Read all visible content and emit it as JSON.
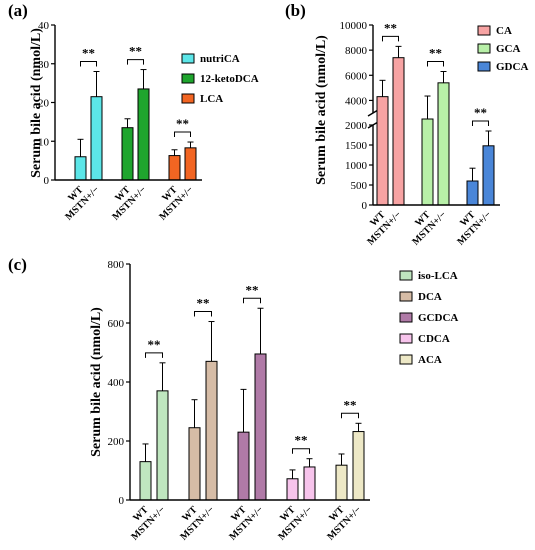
{
  "chart_data": [
    {
      "panel": "(a)",
      "type": "bar",
      "ylabel": "Serum bile acid (nmol/L)",
      "ylim": [
        0,
        40
      ],
      "yticks": [
        0,
        10,
        20,
        30,
        40
      ],
      "categories": [
        "WT",
        "MSTN+/−"
      ],
      "series": [
        {
          "name": "nutriCA",
          "color": "#5ce6e8",
          "values": [
            6,
            21.5
          ],
          "errors": [
            4.5,
            6.5
          ]
        },
        {
          "name": "12-ketoDCA",
          "color": "#1fa52e",
          "values": [
            13.5,
            23.5
          ],
          "errors": [
            2.3,
            5
          ]
        },
        {
          "name": "LCA",
          "color": "#f26522",
          "values": [
            6.3,
            8.3
          ],
          "errors": [
            1.5,
            1.5
          ]
        }
      ],
      "significance": [
        "**",
        "**",
        "**"
      ],
      "legend": "right"
    },
    {
      "panel": "(b)",
      "type": "bar",
      "ylabel": "Serum bile acid (nmol/L)",
      "ylim": [
        0,
        10000
      ],
      "broken_axis": {
        "lower": [
          0,
          2000
        ],
        "upper": [
          3000,
          10000
        ]
      },
      "yticks_lower": [
        0,
        500,
        1000,
        1500,
        2000
      ],
      "yticks_upper": [
        4000,
        6000,
        8000,
        10000
      ],
      "categories": [
        "WT",
        "MSTN+/−"
      ],
      "series": [
        {
          "name": "CA",
          "color": "#f7a3a3",
          "values": [
            4300,
            7400
          ],
          "errors": [
            1300,
            900
          ]
        },
        {
          "name": "GCA",
          "color": "#b8f0a8",
          "values": [
            2950,
            5400
          ],
          "errors": [
            1400,
            900
          ]
        },
        {
          "name": "GDCA",
          "color": "#4a86d8",
          "values": [
            600,
            1480
          ],
          "errors": [
            320,
            370
          ]
        }
      ],
      "significance": [
        "**",
        "**",
        "**"
      ],
      "legend": "top-right"
    },
    {
      "panel": "(c)",
      "type": "bar",
      "ylabel": "Serum bile acid (nmol/L)",
      "ylim": [
        0,
        800
      ],
      "yticks": [
        0,
        200,
        400,
        600,
        800
      ],
      "categories": [
        "WT",
        "MSTN+/−"
      ],
      "series": [
        {
          "name": "iso-LCA",
          "color": "#bfe6bf",
          "values": [
            130,
            370
          ],
          "errors": [
            60,
            95
          ]
        },
        {
          "name": "DCA",
          "color": "#d6bca6",
          "values": [
            245,
            470
          ],
          "errors": [
            95,
            135
          ]
        },
        {
          "name": "GCDCA",
          "color": "#b07aa7",
          "values": [
            230,
            495
          ],
          "errors": [
            145,
            155
          ]
        },
        {
          "name": "CDCA",
          "color": "#f7c4ec",
          "values": [
            72,
            112
          ],
          "errors": [
            30,
            28
          ]
        },
        {
          "name": "ACA",
          "color": "#ede8c6",
          "values": [
            118,
            232
          ],
          "errors": [
            38,
            28
          ]
        }
      ],
      "significance": [
        "**",
        "**",
        "**",
        "**",
        "**"
      ],
      "legend": "right"
    }
  ]
}
